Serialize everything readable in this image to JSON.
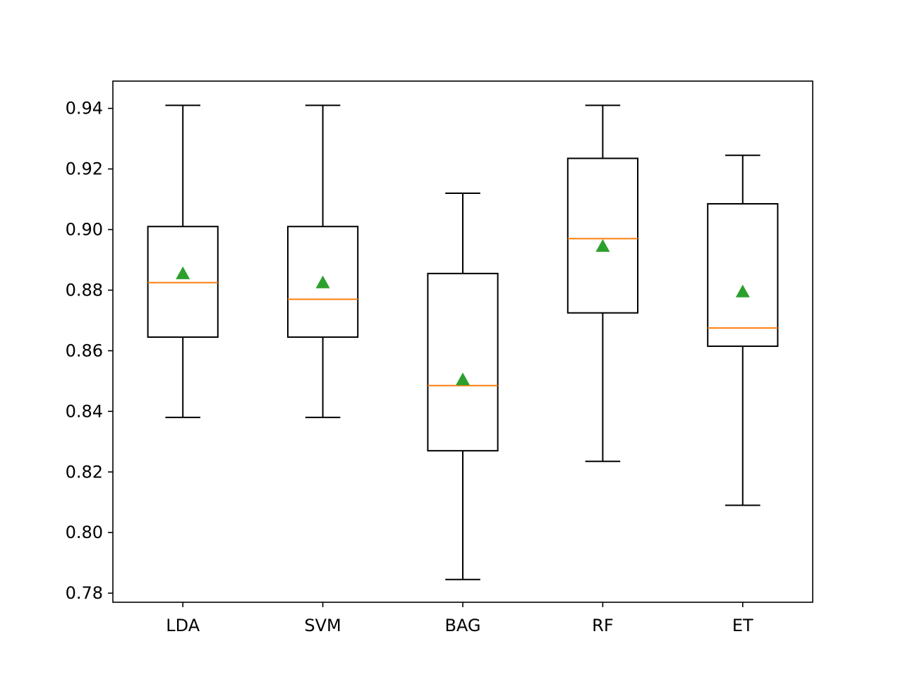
{
  "chart_data": {
    "type": "box",
    "title": "",
    "xlabel": "",
    "ylabel": "",
    "ylim": [
      0.777,
      0.949
    ],
    "yticks": [
      "0.78",
      "0.80",
      "0.82",
      "0.84",
      "0.86",
      "0.88",
      "0.90",
      "0.92",
      "0.94"
    ],
    "categories": [
      "LDA",
      "SVM",
      "BAG",
      "RF",
      "ET"
    ],
    "grid": false,
    "legend": "none",
    "boxes": [
      {
        "label": "LDA",
        "whisker_low": 0.838,
        "q1": 0.8645,
        "median": 0.8825,
        "q3": 0.901,
        "whisker_high": 0.941,
        "mean": 0.8855
      },
      {
        "label": "SVM",
        "whisker_low": 0.838,
        "q1": 0.8645,
        "median": 0.877,
        "q3": 0.901,
        "whisker_high": 0.941,
        "mean": 0.8825
      },
      {
        "label": "BAG",
        "whisker_low": 0.7845,
        "q1": 0.827,
        "median": 0.8485,
        "q3": 0.8855,
        "whisker_high": 0.912,
        "mean": 0.8505
      },
      {
        "label": "RF",
        "whisker_low": 0.8235,
        "q1": 0.8725,
        "median": 0.897,
        "q3": 0.9235,
        "whisker_high": 0.941,
        "mean": 0.8945
      },
      {
        "label": "ET",
        "whisker_low": 0.809,
        "q1": 0.8615,
        "median": 0.8675,
        "q3": 0.9085,
        "whisker_high": 0.9245,
        "mean": 0.8795
      }
    ],
    "colors": {
      "box": "#000000",
      "median": "#ff7f0e",
      "mean": "#2ca02c"
    }
  }
}
